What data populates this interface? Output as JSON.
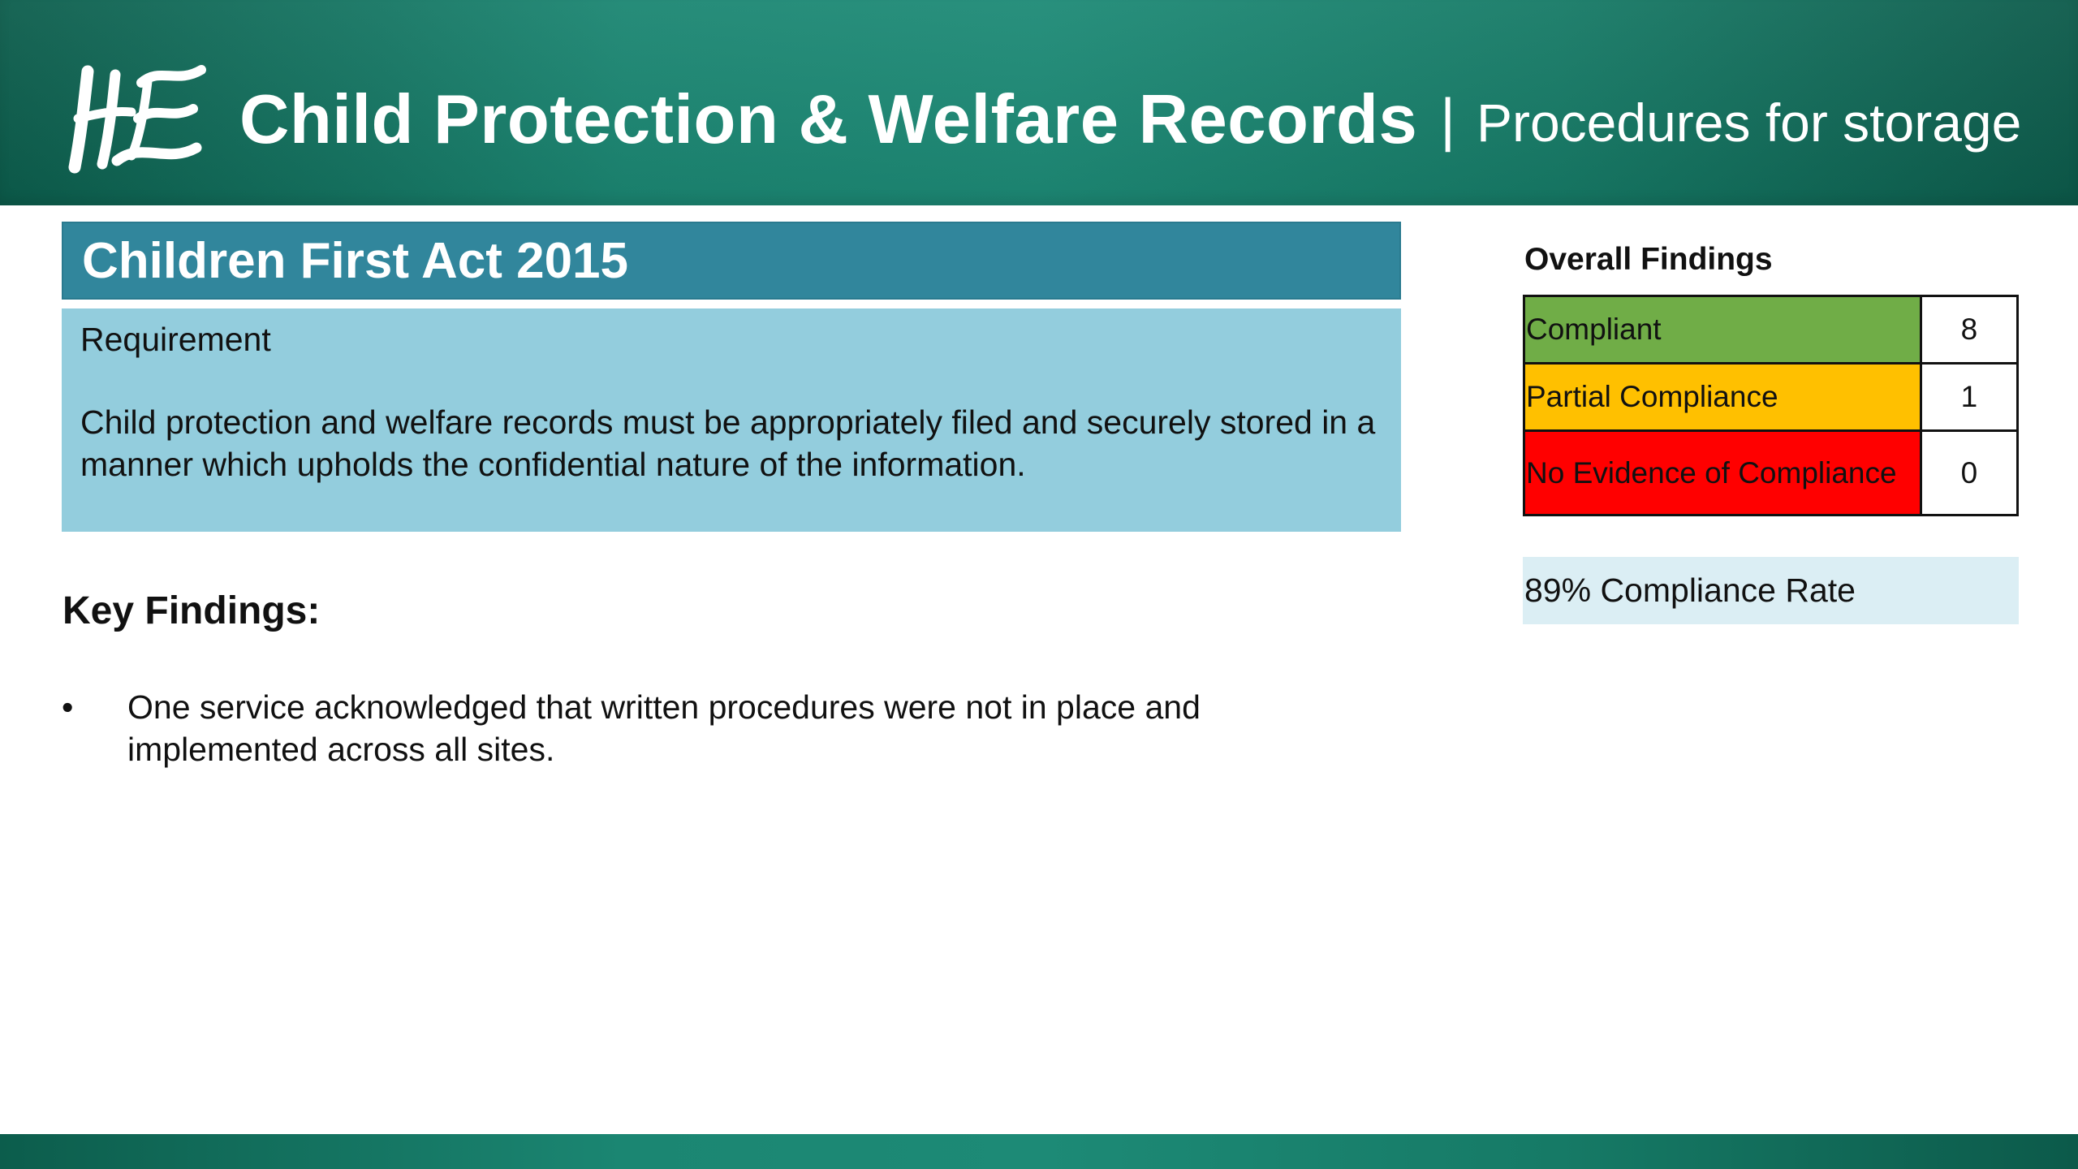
{
  "header": {
    "logo_text": "HSE",
    "title": "Child Protection & Welfare Records",
    "separator": "|",
    "subtitle": "Procedures for storage"
  },
  "act": {
    "title": "Children First Act 2015"
  },
  "requirement": {
    "label": "Requirement",
    "text": "Child protection and welfare records must be appropriately filed and securely stored in a manner which upholds the confidential nature of the information."
  },
  "key_findings": {
    "heading": "Key Findings:",
    "items": [
      {
        "bullet": "•",
        "text": "One service acknowledged that written procedures were not in place and implemented across all sites."
      }
    ]
  },
  "overall_findings": {
    "heading": "Overall Findings",
    "rows": [
      {
        "label": "Compliant",
        "count": "8",
        "color": "#70ad47"
      },
      {
        "label": "Partial Compliance",
        "count": "1",
        "color": "#ffc000"
      },
      {
        "label": "No Evidence of Compliance",
        "count": "0",
        "color": "#ff0000"
      }
    ],
    "compliance_rate": "89% Compliance Rate"
  },
  "colors": {
    "header_green": "#1b8672",
    "banner_teal": "#31869c",
    "requirement_bg": "#93cddd",
    "rate_bg": "#dbeef4"
  }
}
